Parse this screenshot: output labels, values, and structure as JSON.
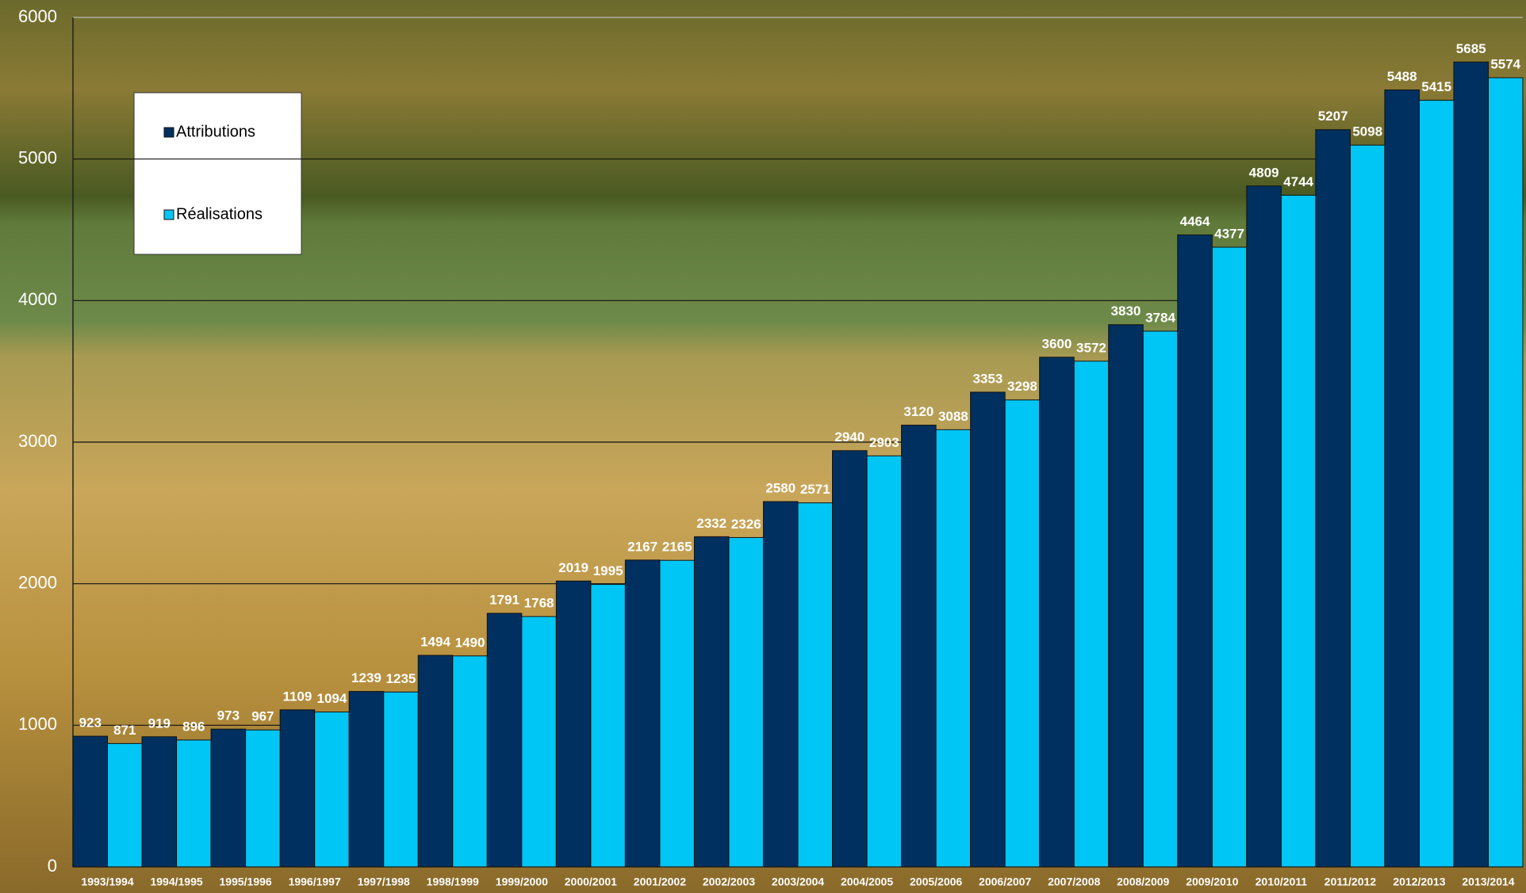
{
  "chart_data": {
    "type": "bar",
    "categories": [
      "1993/1994",
      "1994/1995",
      "1995/1996",
      "1996/1997",
      "1997/1998",
      "1998/1999",
      "1999/2000",
      "2000/2001",
      "2001/2002",
      "2002/2003",
      "2003/2004",
      "2004/2005",
      "2005/2006",
      "2006/2007",
      "2007/2008",
      "2008/2009",
      "2009/2010",
      "2010/2011",
      "2011/2012",
      "2012/2013",
      "2013/2014"
    ],
    "series": [
      {
        "name": "Attributions",
        "color": "#00305f",
        "values": [
          923,
          919,
          973,
          1109,
          1239,
          1494,
          1791,
          2019,
          2167,
          2332,
          2580,
          2940,
          3120,
          3353,
          3600,
          3830,
          4464,
          4809,
          5207,
          5488,
          5685
        ]
      },
      {
        "name": "Réalisations",
        "color": "#00c6f5",
        "values": [
          871,
          896,
          967,
          1094,
          1235,
          1490,
          1768,
          1995,
          2165,
          2326,
          2571,
          2903,
          3088,
          3298,
          3572,
          3784,
          4377,
          4744,
          5098,
          5415,
          5574
        ]
      }
    ],
    "ylim": [
      0,
      6000
    ],
    "yticks": [
      0,
      1000,
      2000,
      3000,
      4000,
      5000,
      6000
    ],
    "grid": true,
    "legend": "upper left"
  }
}
